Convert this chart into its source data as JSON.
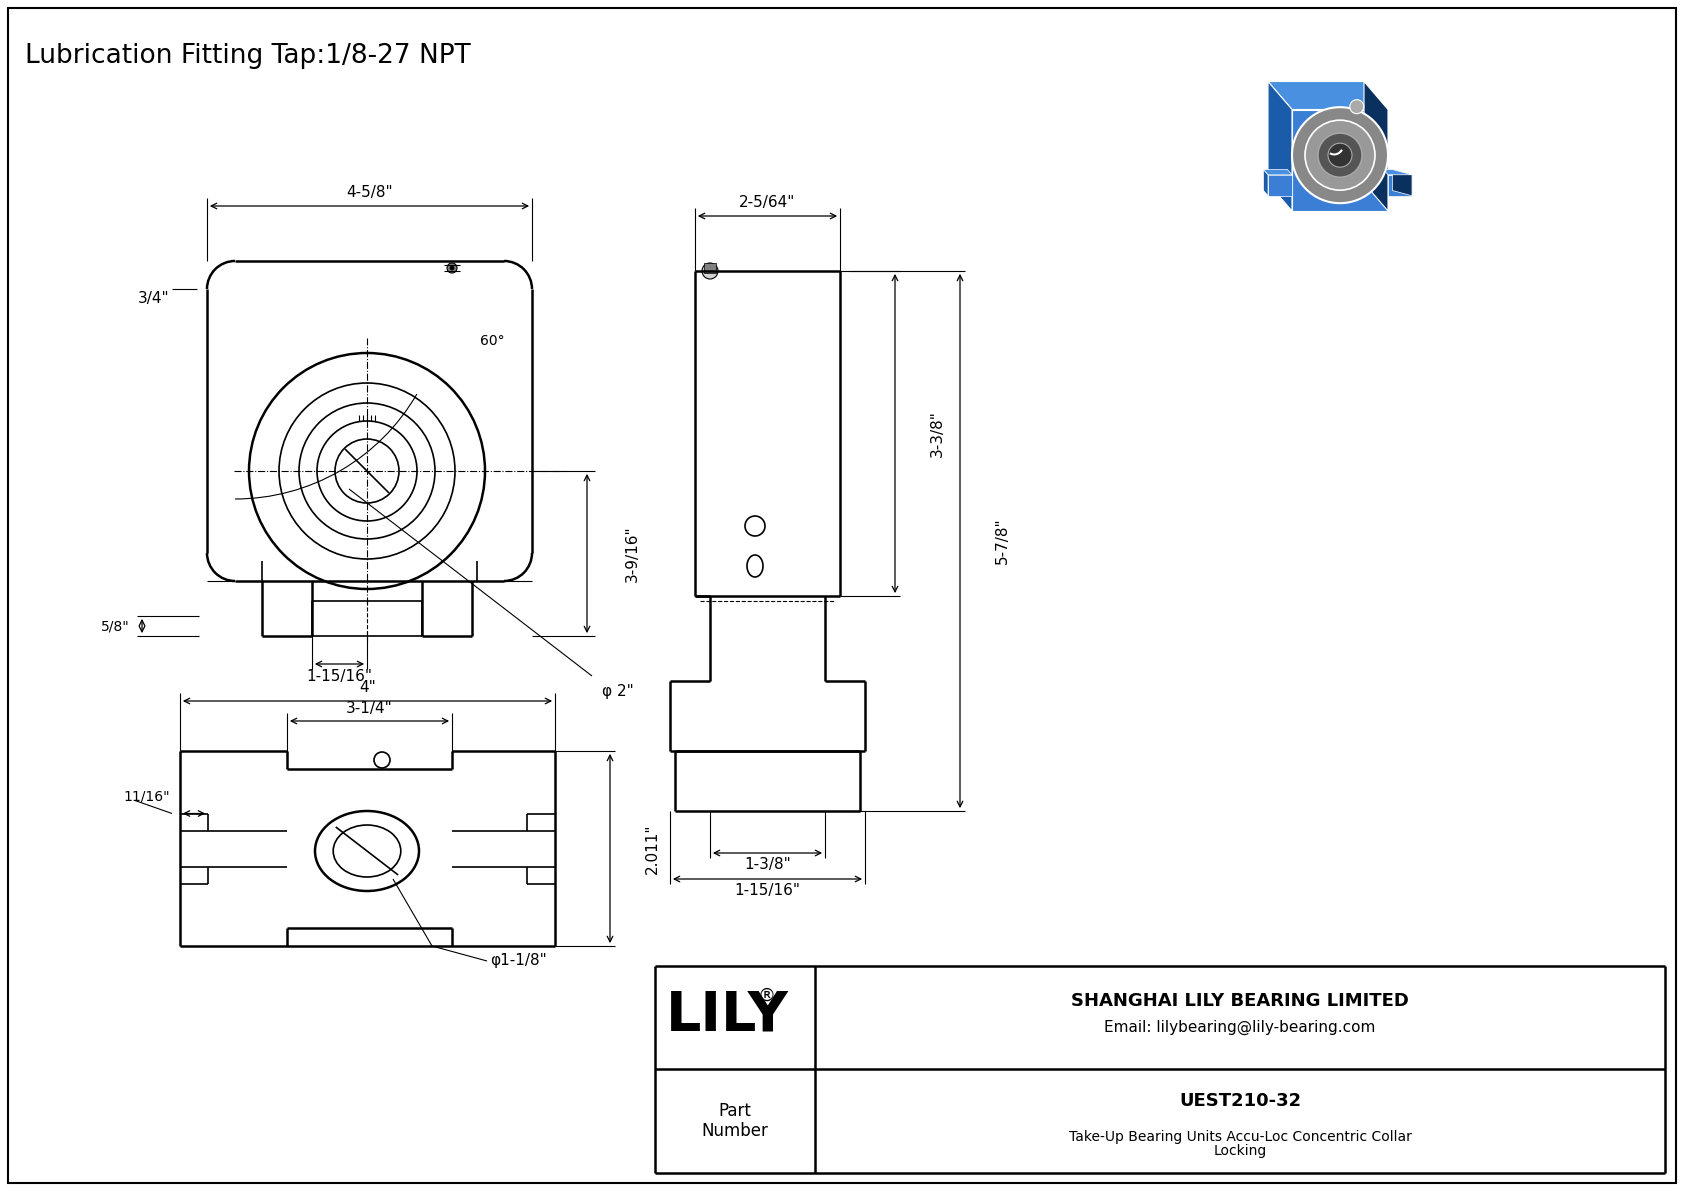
{
  "title": "Lubrication Fitting Tap:1/8-27 NPT",
  "background_color": "#ffffff",
  "line_color": "#000000",
  "title_fontsize": 19,
  "annotation_fontsize": 11,
  "company_name": "SHANGHAI LILY BEARING LIMITED",
  "company_email": "Email: lilybearing@lily-bearing.com",
  "part_label": "Part\nNumber",
  "part_number": "UEST210-32",
  "part_description": "Take-Up Bearing Units Accu-Loc Concentric Collar\nLocking",
  "lily_text": "LILY",
  "dim_4_5_8": "4-5/8\"",
  "dim_3_4": "3/4\"",
  "dim_3_9_16": "3-9/16\"",
  "dim_phi2": "φ 2\"",
  "dim_1_15_16": "1-15/16\"",
  "dim_5_8": "5/8\"",
  "dim_60deg": "60°",
  "dim_4": "4\"",
  "dim_3_1_4": "3-1/4\"",
  "dim_11_16": "11/16\"",
  "dim_2_011": "2.011\"",
  "dim_phi1_1_8": "φ1-1/8\"",
  "dim_2_5_64": "2-5/64\"",
  "dim_3_3_8": "3-3/8\"",
  "dim_5_7_8": "5-7/8\"",
  "dim_1_3_8": "1-3/8\"",
  "dim_1_15_16_r": "1-15/16\""
}
